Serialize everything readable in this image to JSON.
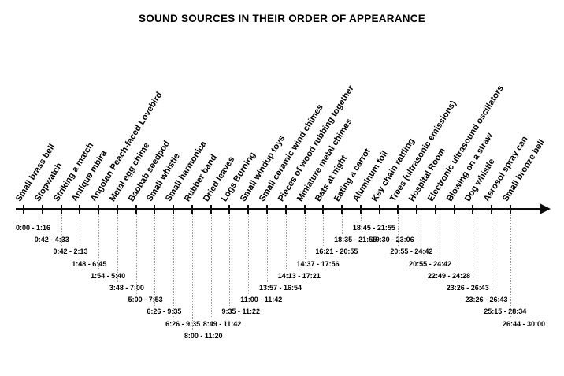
{
  "title": "SOUND SOURCES IN THEIR ORDER OF APPEARANCE",
  "accent_color": "#0d0d0d",
  "timeline": {
    "items": [
      {
        "label": "Small brass bell",
        "time": "0:00 - 1:16"
      },
      {
        "label": "Stopwatch",
        "time": "0:42 - 4:33"
      },
      {
        "label": "Striking a match",
        "time": "0:42 - 2:13"
      },
      {
        "label": "Antique mbira",
        "time": "1:48 - 6:45"
      },
      {
        "label": "Angolan Peach-faced Lovebird",
        "time": "1:54 - 5:40"
      },
      {
        "label": "Metal egg chime",
        "time": "3:48 - 7:00"
      },
      {
        "label": "Baobab seedpod",
        "time": "5:00 - 7:53"
      },
      {
        "label": "Small whistle",
        "time": "6:26 - 9:35"
      },
      {
        "label": "Small harmonica",
        "time": "6:26 - 9:35"
      },
      {
        "label": "Rubber band",
        "time": "8:00 - 11:20"
      },
      {
        "label": "Dried leaves",
        "time": "8:49 - 11:42"
      },
      {
        "label": "Logs Burning",
        "time": "9:35 - 11:22"
      },
      {
        "label": "Small windup toys",
        "time": "11:00 - 11:42"
      },
      {
        "label": "Small ceramic wind chimes",
        "time": "13:57 - 16:54"
      },
      {
        "label": "Pieces of wood rubbing together",
        "time": "14:13 - 17:21"
      },
      {
        "label": "Miniature metal chimes",
        "time": "14:37 - 17:56"
      },
      {
        "label": "Bats at night",
        "time": "16:21 - 20:55"
      },
      {
        "label": "Eating a carrot",
        "time": "18:35 - 21:55"
      },
      {
        "label": "Aluminum foil",
        "time": "18:45 - 21:55"
      },
      {
        "label": "Key chain rattling",
        "time": "19:30 - 23:06"
      },
      {
        "label": "Trees (ultrasonic emissions)",
        "time": "20:55 - 24:42"
      },
      {
        "label": "Hospital Room",
        "time": "20:55 - 24:42"
      },
      {
        "label": "Electronic ultrasound oscillators",
        "time": "22:49 - 24:28"
      },
      {
        "label": "Blowing on a straw",
        "time": "23:26 - 26:43"
      },
      {
        "label": "Dog whistle",
        "time": "23:26 - 26:43"
      },
      {
        "label": "Aerosol spray can",
        "time": "25:15 - 28:34"
      },
      {
        "label": "Small bronze bell",
        "time": "26:44 - 30:00"
      }
    ]
  },
  "chart_data": {
    "type": "table",
    "title": "SOUND SOURCES IN THEIR ORDER OF APPEARANCE",
    "columns": [
      "sound_source",
      "time_range"
    ],
    "rows": [
      [
        "Small brass bell",
        "0:00 - 1:16"
      ],
      [
        "Stopwatch",
        "0:42 - 4:33"
      ],
      [
        "Striking a match",
        "0:42 - 2:13"
      ],
      [
        "Antique mbira",
        "1:48 - 6:45"
      ],
      [
        "Angolan Peach-faced Lovebird",
        "1:54 - 5:40"
      ],
      [
        "Metal egg chime",
        "3:48 - 7:00"
      ],
      [
        "Baobab seedpod",
        "5:00 - 7:53"
      ],
      [
        "Small whistle",
        "6:26 - 9:35"
      ],
      [
        "Small harmonica",
        "6:26 - 9:35"
      ],
      [
        "Rubber band",
        "8:00 - 11:20"
      ],
      [
        "Dried leaves",
        "8:49 - 11:42"
      ],
      [
        "Logs Burning",
        "9:35 - 11:22"
      ],
      [
        "Small windup toys",
        "11:00 - 11:42"
      ],
      [
        "Small ceramic wind chimes",
        "13:57 - 16:54"
      ],
      [
        "Pieces of wood rubbing together",
        "14:13 - 17:21"
      ],
      [
        "Miniature metal chimes",
        "14:37 - 17:56"
      ],
      [
        "Bats at night",
        "16:21 - 20:55"
      ],
      [
        "Eating a carrot",
        "18:35 - 21:55"
      ],
      [
        "Aluminum foil",
        "18:45 - 21:55"
      ],
      [
        "Key chain rattling",
        "19:30 - 23:06"
      ],
      [
        "Trees (ultrasonic emissions)",
        "20:55 - 24:42"
      ],
      [
        "Hospital Room",
        "20:55 - 24:42"
      ],
      [
        "Electronic ultrasound oscillators",
        "22:49 - 24:28"
      ],
      [
        "Blowing on a straw",
        "23:26 - 26:43"
      ],
      [
        "Dog whistle",
        "23:26 - 26:43"
      ],
      [
        "Aerosol spray can",
        "25:15 - 28:34"
      ],
      [
        "Small bronze bell",
        "26:44 - 30:00"
      ]
    ]
  }
}
